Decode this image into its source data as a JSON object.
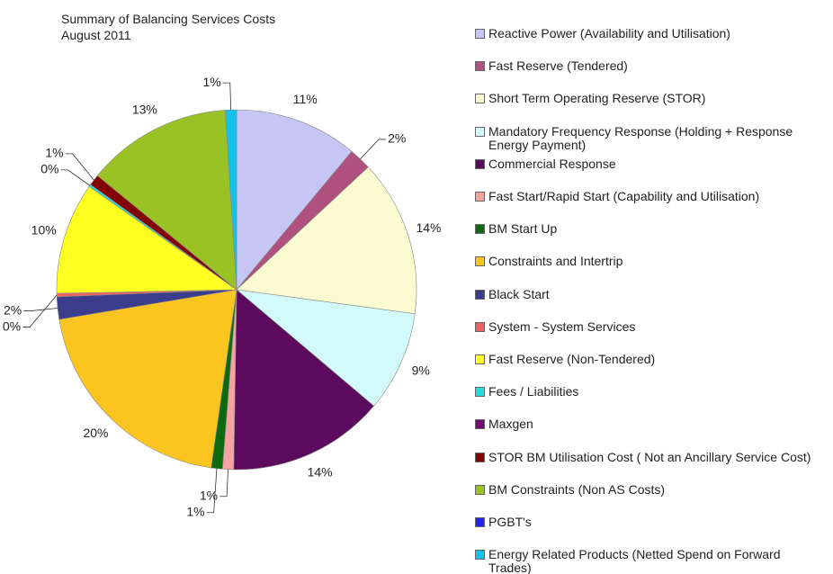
{
  "chart_data": {
    "type": "pie",
    "title": "Summary of Balancing Services Costs",
    "subtitle": "August 2011",
    "categories": [
      "Reactive Power (Availability and Utilisation)",
      "Fast Reserve (Tendered)",
      "Short Term Operating Reserve (STOR)",
      "Mandatory Frequency Response (Holding + Response Energy Payment)",
      "Commercial Response",
      "Fast Start/Rapid Start (Capability and Utilisation)",
      "BM Start Up",
      "Constraints and Intertrip",
      "Black Start",
      "System - System Services",
      "Fast Reserve (Non-Tendered)",
      "Fees / Liabilities",
      "Maxgen",
      "STOR BM Utilisation Cost ( Not an Ancillary Service Cost)",
      "BM Constraints (Non AS Costs)",
      "PGBT's",
      "Energy Related Products (Netted Spend on Forward Trades)"
    ],
    "values": [
      11,
      2,
      14,
      9,
      14,
      1,
      1,
      20,
      2,
      0.3,
      10,
      0.2,
      0,
      1,
      13,
      0,
      1
    ],
    "value_labels": [
      "11%",
      "2%",
      "14%",
      "9%",
      "14%",
      "1%",
      "1%",
      "20%",
      "2%",
      "0%",
      "10%",
      "0%",
      null,
      "1%",
      "13%",
      null,
      "1%"
    ],
    "colors": [
      "#c6c6f4",
      "#b0507e",
      "#fbfbd2",
      "#d2fafa",
      "#5c0a5e",
      "#f4a2a2",
      "#0e6a10",
      "#fcc41e",
      "#3c3c8c",
      "#f06262",
      "#ffff22",
      "#22dede",
      "#720c74",
      "#820404",
      "#9ac224",
      "#2424f0",
      "#12c2ea"
    ],
    "legend": "right"
  }
}
